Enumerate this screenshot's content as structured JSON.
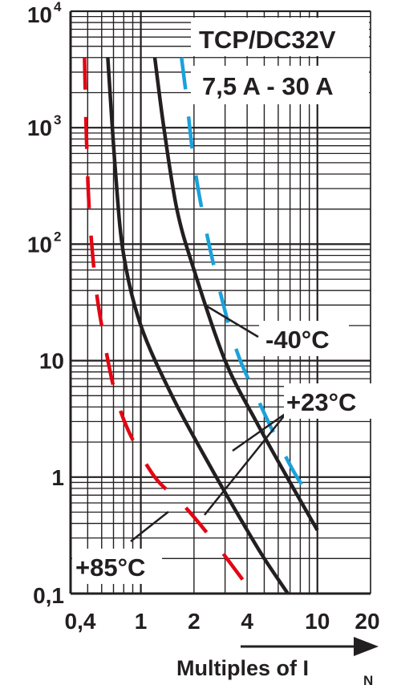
{
  "chart_data": {
    "type": "line",
    "title": "TCP/DC32V",
    "subtitle": "7,5 A - 30 A",
    "xlabel_main": "Multiples of I",
    "xlabel_sub": "N",
    "x_scale": "log",
    "y_scale": "log",
    "xlim": [
      0.4,
      20
    ],
    "ylim": [
      0.1,
      10000
    ],
    "x_ticks": [
      {
        "value": 0.4,
        "label": "0,4"
      },
      {
        "value": 1,
        "label": "1"
      },
      {
        "value": 2,
        "label": "2"
      },
      {
        "value": 4,
        "label": "4"
      },
      {
        "value": 10,
        "label": "10"
      },
      {
        "value": 20,
        "label": "20"
      }
    ],
    "y_ticks": [
      {
        "value": 10000,
        "base": "10",
        "exp": "4"
      },
      {
        "value": 1000,
        "base": "10",
        "exp": "3"
      },
      {
        "value": 100,
        "base": "10",
        "exp": "2"
      },
      {
        "value": 10,
        "base": "10",
        "exp": ""
      },
      {
        "value": 1,
        "base": "1",
        "exp": ""
      },
      {
        "value": 0.1,
        "base": "0,1",
        "exp": ""
      }
    ],
    "grid": true,
    "colors": {
      "axis": "#231f20",
      "black_curve": "#231f20",
      "red": "#e30613",
      "blue": "#1ba1dc"
    },
    "annotations": [
      {
        "text": "-40°C",
        "targets": [
          "black-right-curve"
        ]
      },
      {
        "text": "+23°C",
        "targets": [
          "black-left-curve",
          "black-right-curve"
        ]
      },
      {
        "text": "+85°C",
        "targets": [
          "red-dashed-curve"
        ]
      }
    ],
    "series": [
      {
        "color": "black",
        "style": "solid",
        "x": [
          0.65,
          0.72,
          0.8,
          1.0,
          1.5,
          2.5,
          4.0,
          5.0,
          6.8
        ],
        "y": [
          4000,
          400,
          80,
          20,
          5,
          1.2,
          0.35,
          0.2,
          0.1
        ]
      },
      {
        "color": "black",
        "style": "solid",
        "x": [
          1.2,
          1.35,
          1.6,
          2.0,
          3.0,
          4.5,
          7.0,
          10.0
        ],
        "y": [
          4000,
          1000,
          200,
          60,
          10,
          3,
          0.9,
          0.35
        ]
      },
      {
        "color": "red",
        "style": "dashed",
        "x": [
          0.48,
          0.49,
          0.51,
          0.55,
          0.6,
          0.7,
          0.85,
          1.2,
          1.7,
          2.5,
          3.8
        ],
        "y": [
          4000,
          1000,
          200,
          50,
          20,
          6,
          2.5,
          1.0,
          0.6,
          0.3,
          0.13
        ]
      },
      {
        "color": "blue",
        "style": "dashed",
        "x": [
          1.7,
          1.8,
          2.0,
          2.3,
          2.8,
          3.5,
          4.5,
          6.0,
          8.0,
          10.0
        ],
        "y": [
          4000,
          2000,
          500,
          150,
          40,
          12,
          5,
          2,
          0.9,
          0.65
        ]
      }
    ]
  }
}
